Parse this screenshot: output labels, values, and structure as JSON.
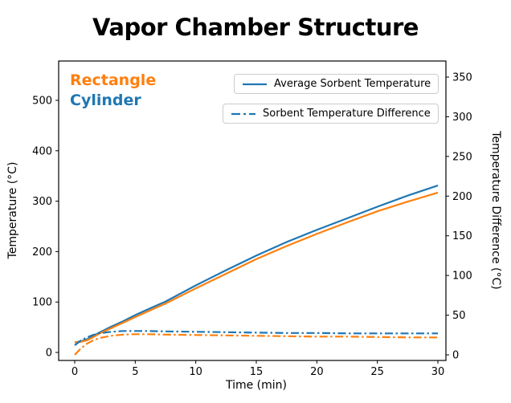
{
  "figure": {
    "title": "Vapor Chamber Structure"
  },
  "chart_data": {
    "type": "line",
    "title": "Vapor Chamber Structure",
    "xlabel": "Time (min)",
    "ylabel_left": "Temperature (°C)",
    "ylabel_right": "Temperature Difference (°C)",
    "x_ticks": [
      0,
      5,
      10,
      15,
      20,
      25,
      30
    ],
    "y_ticks_left": [
      0,
      100,
      200,
      300,
      400,
      500
    ],
    "y_ticks_right": [
      0,
      50,
      100,
      150,
      200,
      250,
      300,
      350
    ],
    "xlim": [
      -1.3,
      30.7
    ],
    "ylim_left": [
      -16,
      578
    ],
    "ylim_right": [
      -7,
      370
    ],
    "grid": false,
    "legend_position": "upper right, two stacked boxes",
    "colors": {
      "cylinder": "#1f77b4",
      "rectangle": "#ff7f0e"
    },
    "annotations": [
      {
        "text": "Rectangle",
        "color": "#ff7f0e"
      },
      {
        "text": "Cylinder",
        "color": "#1f77b4"
      }
    ],
    "legends": [
      {
        "label": "Average Sorbent Temperature",
        "style": "solid"
      },
      {
        "label": "Sorbent Temperature Difference",
        "style": "dashdot"
      }
    ],
    "x": [
      0,
      0.5,
      1,
      1.5,
      2,
      3,
      4,
      5,
      6,
      7.5,
      10,
      12.5,
      15,
      17.5,
      20,
      22.5,
      25,
      27.5,
      30
    ],
    "series": [
      {
        "name": "Cylinder Average Sorbent Temperature",
        "axis": "left",
        "style": "solid",
        "color": "#1f77b4",
        "values": [
          20,
          22,
          26,
          32,
          39,
          51,
          62,
          74,
          85,
          101,
          133,
          163,
          192,
          219,
          243,
          266,
          289,
          311,
          331
        ]
      },
      {
        "name": "Rectangle Average Sorbent Temperature",
        "axis": "left",
        "style": "solid",
        "color": "#ff7f0e",
        "values": [
          20,
          21,
          24,
          30,
          37,
          48,
          59,
          70,
          81,
          97,
          127,
          156,
          185,
          211,
          235,
          258,
          280,
          299,
          317
        ]
      },
      {
        "name": "Cylinder Sorbent Temperature Difference",
        "axis": "right",
        "style": "dashdot",
        "color": "#1f77b4",
        "values": [
          12,
          18,
          22,
          25,
          27,
          29,
          30,
          30,
          30,
          29.5,
          29,
          28.5,
          28,
          27.5,
          27.5,
          27,
          27,
          27,
          27
        ]
      },
      {
        "name": "Rectangle Sorbent Temperature Difference",
        "axis": "right",
        "style": "dashdot",
        "color": "#ff7f0e",
        "values": [
          0,
          8,
          14,
          18,
          21,
          24,
          25.5,
          26,
          26,
          25.5,
          25,
          24.5,
          24,
          23.5,
          23,
          23,
          22.5,
          22,
          22
        ]
      }
    ]
  }
}
